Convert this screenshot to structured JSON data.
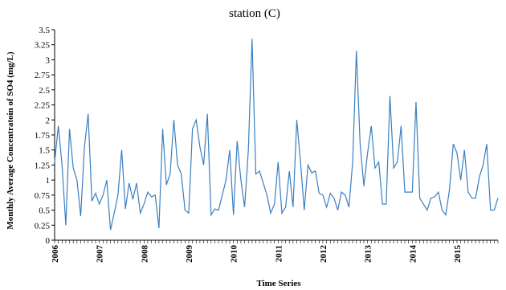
{
  "chart_data": {
    "type": "line",
    "title": "station (C)",
    "xlabel": "Time Series",
    "ylabel": "Monthly Average Concentratoin of SO4 (mg/L)",
    "ylim": [
      0,
      3.5
    ],
    "y_ticks": [
      "0",
      "0.25",
      "0.5",
      "0.75",
      "1",
      "1.25",
      "1.5",
      "1.75",
      "2",
      "2.25",
      "2.5",
      "2.75",
      "3",
      "3.25",
      "3.5"
    ],
    "x_year_labels": [
      "2006",
      "2007",
      "2008",
      "2009",
      "2010",
      "2011",
      "2012",
      "2013",
      "2014",
      "2015"
    ],
    "grid": false,
    "legend": "none",
    "series_color": "#3a7fc1",
    "series": [
      {
        "values": [
          1.3,
          1.9,
          1.25,
          0.25,
          1.85,
          1.2,
          1.0,
          0.4,
          1.55,
          2.1,
          0.65,
          0.78,
          0.6,
          0.75,
          1.0,
          0.17,
          0.45,
          0.75,
          1.5,
          0.52,
          0.95,
          0.68,
          0.95,
          0.45,
          0.6,
          0.8,
          0.72,
          0.75,
          0.2,
          1.85,
          0.92,
          1.1,
          2.0,
          1.25,
          1.1,
          0.5,
          0.45,
          1.85,
          2.0,
          1.55,
          1.25,
          2.1,
          0.42,
          0.52,
          0.5,
          0.75,
          1.0,
          1.5,
          0.42,
          1.65,
          1.0,
          0.55,
          1.5,
          3.35,
          1.1,
          1.15,
          0.95,
          0.75,
          0.45,
          0.6,
          1.3,
          0.45,
          0.55,
          1.15,
          0.55,
          2.0,
          1.3,
          0.5,
          1.25,
          1.12,
          1.15,
          0.78,
          0.75,
          0.55,
          0.78,
          0.7,
          0.5,
          0.8,
          0.75,
          0.55,
          1.3,
          3.15,
          1.6,
          0.9,
          1.45,
          1.9,
          1.2,
          1.3,
          0.6,
          0.6,
          2.4,
          1.2,
          1.3,
          1.9,
          0.8,
          0.8,
          0.8,
          2.3,
          0.7,
          0.6,
          0.5,
          0.7,
          0.72,
          0.8,
          0.5,
          0.42,
          0.85,
          1.6,
          1.45,
          1.0,
          1.5,
          0.8,
          0.7,
          0.7,
          1.05,
          1.25,
          1.6,
          0.5,
          0.5,
          0.7
        ]
      }
    ]
  }
}
